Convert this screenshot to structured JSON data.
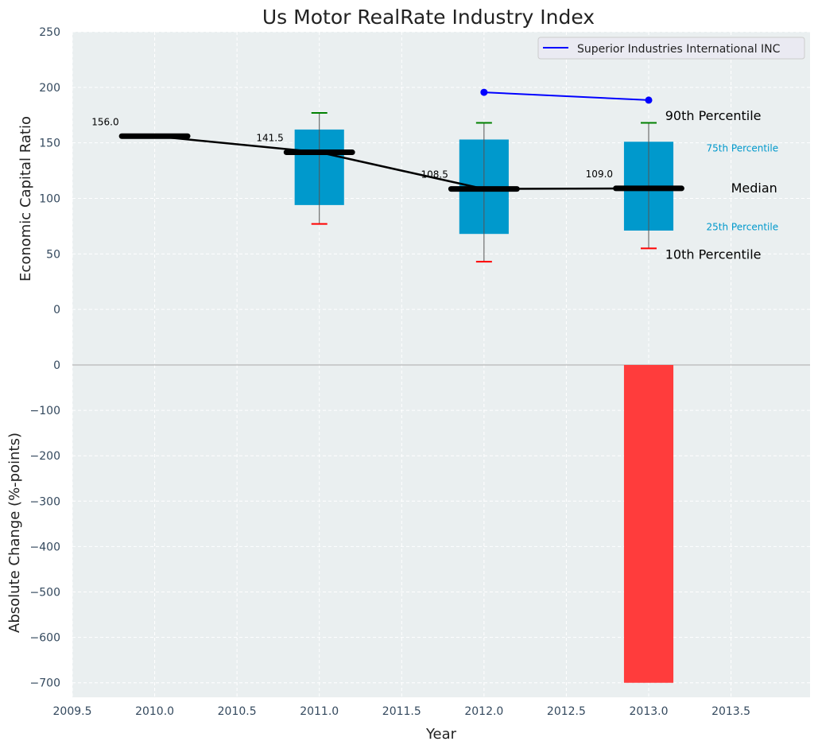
{
  "chart_data": [
    {
      "type": "box",
      "title": "Us Motor RealRate Industry Index",
      "ylabel": "Economic Capital Ratio",
      "ylim": [
        -50,
        250
      ],
      "yticks": [
        0,
        50,
        100,
        150,
        200,
        250
      ],
      "grid": true,
      "legend": {
        "placement": "top-right",
        "entries": [
          "Superior Industries International INC"
        ]
      },
      "years": [
        2010,
        2011,
        2012,
        2013
      ],
      "median": [
        156.0,
        141.5,
        108.5,
        109.0
      ],
      "median_labels": [
        "156.0",
        "141.5",
        "108.5",
        "109.0"
      ],
      "p25": [
        null,
        94,
        68,
        71
      ],
      "p75": [
        null,
        162,
        153,
        151
      ],
      "p10": [
        null,
        77,
        43,
        55
      ],
      "p90": [
        null,
        177,
        168,
        168
      ],
      "company": {
        "name": "Superior Industries International INC",
        "x": [
          2012,
          2013
        ],
        "y": [
          195.5,
          188.5
        ],
        "color": "#0000ff"
      },
      "annotations": [
        {
          "text": "90th Percentile",
          "x": 2013.1,
          "y": 174,
          "color": "#000000",
          "size": "large"
        },
        {
          "text": "75th Percentile",
          "x": 2013.35,
          "y": 146,
          "color": "#0099cc",
          "size": "small"
        },
        {
          "text": "Median",
          "x": 2013.5,
          "y": 109,
          "color": "#000000",
          "size": "large"
        },
        {
          "text": "25th Percentile",
          "x": 2013.35,
          "y": 75,
          "color": "#0099cc",
          "size": "small"
        },
        {
          "text": "10th Percentile",
          "x": 2013.1,
          "y": 49,
          "color": "#000000",
          "size": "large"
        }
      ],
      "box_color": "#0099cc"
    },
    {
      "type": "bar",
      "ylabel": "Absolute Change (%-points)",
      "xlabel": "Year",
      "ylim": [
        -732,
        0
      ],
      "yticks": [
        0,
        -100,
        -200,
        -300,
        -400,
        -500,
        -600,
        -700
      ],
      "xlim": [
        2009.5,
        2013.98
      ],
      "xticks": [
        2009.5,
        2010.0,
        2010.5,
        2011.0,
        2011.5,
        2012.0,
        2012.5,
        2013.0,
        2013.5
      ],
      "x": [
        2013
      ],
      "values": [
        -700
      ],
      "bar_color": "#ff3c3c"
    }
  ]
}
